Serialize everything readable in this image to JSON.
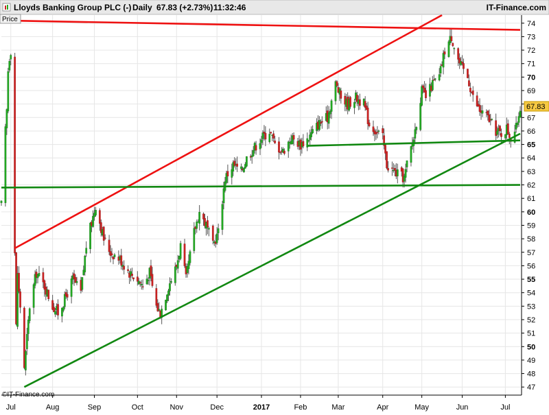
{
  "header": {
    "title": "Lloyds Banking Group PLC (-)",
    "interval": "Daily",
    "quote": "67.83 (+2.73%)",
    "time": "11:32:46",
    "brand": "IT-Finance.com"
  },
  "price_label": "Price",
  "watermark": "©IT-Finance.com",
  "chart_data": {
    "type": "candlestick",
    "ylim": [
      46.4,
      74.6
    ],
    "y_ticks": [
      47,
      48,
      49,
      50,
      51,
      52,
      53,
      54,
      55,
      56,
      57,
      58,
      59,
      60,
      61,
      62,
      63,
      64,
      65,
      66,
      67,
      68,
      69,
      70,
      71,
      72,
      73,
      74
    ],
    "y_ticks_bold": [
      50,
      55,
      60,
      65,
      70
    ],
    "x_start": "2016-06-24",
    "x_end": "2017-07-14",
    "x_ticks": [
      {
        "label": "Jul",
        "date": "2016-07-01",
        "bold": false
      },
      {
        "label": "Aug",
        "date": "2016-08-01",
        "bold": false
      },
      {
        "label": "Sep",
        "date": "2016-09-01",
        "bold": false
      },
      {
        "label": "Oct",
        "date": "2016-10-03",
        "bold": false
      },
      {
        "label": "Nov",
        "date": "2016-11-01",
        "bold": false
      },
      {
        "label": "Dec",
        "date": "2016-12-01",
        "bold": false
      },
      {
        "label": "2017",
        "date": "2017-01-03",
        "bold": true
      },
      {
        "label": "Feb",
        "date": "2017-02-01",
        "bold": false
      },
      {
        "label": "Mar",
        "date": "2017-03-01",
        "bold": false
      },
      {
        "label": "Apr",
        "date": "2017-04-03",
        "bold": false
      },
      {
        "label": "May",
        "date": "2017-05-02",
        "bold": false
      },
      {
        "label": "Jun",
        "date": "2017-06-01",
        "bold": false
      },
      {
        "label": "Jul",
        "date": "2017-07-03",
        "bold": false
      }
    ],
    "last_price": 67.83,
    "series_keypoints": [
      [
        "2016-06-24",
        60.5
      ],
      [
        "2016-06-27",
        66.0
      ],
      [
        "2016-06-28",
        67.5
      ],
      [
        "2016-06-29",
        70.5
      ],
      [
        "2016-06-30",
        71.5
      ],
      [
        "2016-07-01",
        72.0
      ],
      [
        "2016-07-04",
        57.0
      ],
      [
        "2016-07-05",
        51.5
      ],
      [
        "2016-07-06",
        55.5
      ],
      [
        "2016-07-07",
        54.0
      ],
      [
        "2016-07-08",
        53.0
      ],
      [
        "2016-07-11",
        48.5
      ],
      [
        "2016-07-12",
        49.5
      ],
      [
        "2016-07-15",
        53.0
      ],
      [
        "2016-07-20",
        55.5
      ],
      [
        "2016-07-26",
        54.5
      ],
      [
        "2016-08-01",
        53.0
      ],
      [
        "2016-08-05",
        52.5
      ],
      [
        "2016-08-10",
        53.5
      ],
      [
        "2016-08-16",
        55.0
      ],
      [
        "2016-08-22",
        54.0
      ],
      [
        "2016-08-26",
        57.5
      ],
      [
        "2016-09-02",
        60.5
      ],
      [
        "2016-09-08",
        58.0
      ],
      [
        "2016-09-13",
        57.0
      ],
      [
        "2016-09-20",
        56.5
      ],
      [
        "2016-09-27",
        55.5
      ],
      [
        "2016-10-03",
        55.0
      ],
      [
        "2016-10-07",
        54.5
      ],
      [
        "2016-10-12",
        55.5
      ],
      [
        "2016-10-17",
        53.0
      ],
      [
        "2016-10-20",
        52.5
      ],
      [
        "2016-10-26",
        54.5
      ],
      [
        "2016-11-01",
        56.0
      ],
      [
        "2016-11-04",
        57.5
      ],
      [
        "2016-11-08",
        55.0
      ],
      [
        "2016-11-14",
        58.5
      ],
      [
        "2016-11-18",
        60.0
      ],
      [
        "2016-11-23",
        59.0
      ],
      [
        "2016-11-28",
        57.5
      ],
      [
        "2016-12-02",
        58.5
      ],
      [
        "2016-12-07",
        62.5
      ],
      [
        "2016-12-13",
        63.5
      ],
      [
        "2016-12-19",
        63.0
      ],
      [
        "2016-12-23",
        64.0
      ],
      [
        "2017-01-03",
        65.5
      ],
      [
        "2017-01-09",
        66.0
      ],
      [
        "2017-01-13",
        65.0
      ],
      [
        "2017-01-19",
        64.5
      ],
      [
        "2017-01-25",
        65.5
      ],
      [
        "2017-02-01",
        65.0
      ],
      [
        "2017-02-07",
        65.5
      ],
      [
        "2017-02-14",
        66.5
      ],
      [
        "2017-02-21",
        67.0
      ],
      [
        "2017-02-27",
        69.5
      ],
      [
        "2017-03-03",
        68.5
      ],
      [
        "2017-03-08",
        68.0
      ],
      [
        "2017-03-14",
        68.5
      ],
      [
        "2017-03-20",
        68.0
      ],
      [
        "2017-03-24",
        66.5
      ],
      [
        "2017-03-29",
        66.0
      ],
      [
        "2017-04-03",
        65.5
      ],
      [
        "2017-04-06",
        63.5
      ],
      [
        "2017-04-11",
        63.0
      ],
      [
        "2017-04-19",
        62.5
      ],
      [
        "2017-04-21",
        63.5
      ],
      [
        "2017-04-26",
        65.5
      ],
      [
        "2017-05-02",
        69.0
      ],
      [
        "2017-05-05",
        68.5
      ],
      [
        "2017-05-10",
        69.5
      ],
      [
        "2017-05-15",
        70.0
      ],
      [
        "2017-05-19",
        72.0
      ],
      [
        "2017-05-24",
        73.0
      ],
      [
        "2017-05-30",
        71.0
      ],
      [
        "2017-06-05",
        70.0
      ],
      [
        "2017-06-09",
        68.5
      ],
      [
        "2017-06-14",
        67.5
      ],
      [
        "2017-06-20",
        67.0
      ],
      [
        "2017-06-26",
        66.0
      ],
      [
        "2017-06-30",
        65.8
      ],
      [
        "2017-07-04",
        66.2
      ],
      [
        "2017-07-07",
        65.5
      ],
      [
        "2017-07-11",
        66.2
      ],
      [
        "2017-07-14",
        67.83
      ]
    ],
    "trendlines": [
      {
        "name": "upper-channel-line",
        "color": "#ee1111",
        "from": [
          "2016-07-04",
          57.3
        ],
        "to": [
          "2017-05-17",
          74.6
        ]
      },
      {
        "name": "top-resistance-line",
        "color": "#ee1111",
        "from": [
          "2016-06-24",
          74.2
        ],
        "to": [
          "2017-07-14",
          73.5
        ]
      },
      {
        "name": "lower-channel-line",
        "color": "#118811",
        "from": [
          "2016-07-11",
          47.0
        ],
        "to": [
          "2017-07-14",
          65.8
        ]
      },
      {
        "name": "horizontal-support-line",
        "color": "#118811",
        "from": [
          "2016-06-24",
          61.8
        ],
        "to": [
          "2017-07-14",
          62.0
        ]
      },
      {
        "name": "short-support-line",
        "color": "#118811",
        "from": [
          "2017-02-06",
          64.9
        ],
        "to": [
          "2017-07-14",
          65.3
        ]
      }
    ],
    "colors": {
      "up": "#22aa22",
      "down": "#cc2222",
      "wick": "#555555",
      "grid": "#e6e6e6",
      "last_price_bg": "#f5c842",
      "header_bg": "#e8e8e8"
    }
  }
}
